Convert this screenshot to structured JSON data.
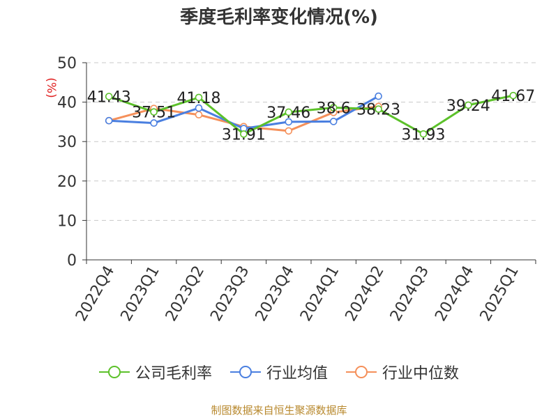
{
  "title": "季度毛利率变化情况(%)",
  "source": "制图数据来自恒生聚源数据库",
  "colors": {
    "company": "#5cc12a",
    "industry_avg": "#4a7fe0",
    "industry_median": "#f5905a"
  },
  "chart_data": {
    "type": "line",
    "title": "季度毛利率变化情况(%)",
    "ylabel": "(%)",
    "xlabel": "",
    "ylim": [
      0,
      50
    ],
    "yticks": [
      0,
      10,
      20,
      30,
      40,
      50
    ],
    "grid": true,
    "legend_position": "bottom",
    "categories": [
      "2022Q4",
      "2023Q1",
      "2023Q2",
      "2023Q3",
      "2023Q4",
      "2024Q1",
      "2024Q2",
      "2024Q3",
      "2024Q4",
      "2025Q1"
    ],
    "series": [
      {
        "name": "公司毛利率",
        "color": "#5cc12a",
        "show_labels": true,
        "values": [
          41.43,
          37.51,
          41.18,
          31.91,
          37.46,
          38.6,
          38.23,
          31.93,
          39.24,
          41.67
        ]
      },
      {
        "name": "行业均值",
        "color": "#4a7fe0",
        "show_labels": false,
        "values": [
          35.3,
          34.7,
          38.5,
          33.3,
          35.0,
          35.1,
          41.5,
          null,
          null,
          null
        ]
      },
      {
        "name": "行业中位数",
        "color": "#f5905a",
        "show_labels": false,
        "values": [
          35.3,
          38.4,
          36.8,
          33.8,
          32.7,
          37.4,
          38.9,
          null,
          null,
          null
        ]
      }
    ]
  }
}
